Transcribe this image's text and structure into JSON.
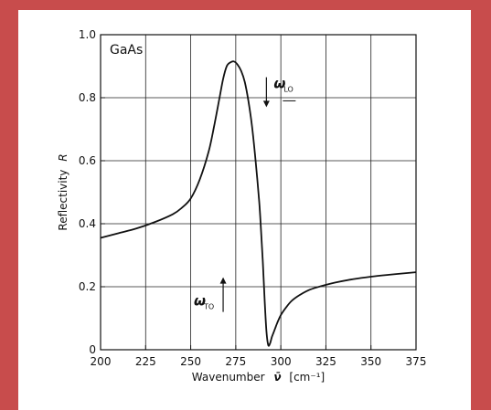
{
  "chart_data": {
    "type": "line",
    "title": "",
    "annotation_label": "GaAs",
    "xlabel": "Wavenumber",
    "xlabel_symbol": "ν̄",
    "xlabel_unit": "[cm⁻¹]",
    "ylabel": "Reflectivity",
    "ylabel_symbol": "R",
    "xlim": [
      200,
      375
    ],
    "ylim": [
      0,
      1.0
    ],
    "x_ticks": [
      200,
      225,
      250,
      275,
      300,
      325,
      350,
      375
    ],
    "x_tick_labels": [
      "200",
      "225",
      "250",
      "275",
      "300",
      "325",
      "350",
      "375"
    ],
    "y_ticks": [
      0,
      0.2,
      0.4,
      0.6,
      0.8,
      1.0
    ],
    "y_tick_labels": [
      "0",
      "0.2",
      "0.4",
      "0.6",
      "0.8",
      "1.0"
    ],
    "grid": true,
    "markers": [
      {
        "name": "ω",
        "subscript": "TO",
        "x": 268,
        "direction": "up"
      },
      {
        "name": "ω",
        "subscript": "LO",
        "x": 292,
        "direction": "down"
      }
    ],
    "series": [
      {
        "x": [
          200,
          210,
          220,
          230,
          240,
          245,
          250,
          255,
          260,
          263,
          266,
          268,
          270,
          272,
          274,
          276,
          278,
          280,
          282,
          284,
          286,
          288,
          289,
          290,
          291,
          292,
          293,
          294,
          295,
          296,
          297,
          298,
          300,
          303,
          306,
          310,
          315,
          320,
          330,
          340,
          350,
          360,
          375
        ],
        "y": [
          0.355,
          0.37,
          0.385,
          0.405,
          0.43,
          0.45,
          0.48,
          0.54,
          0.63,
          0.71,
          0.8,
          0.86,
          0.9,
          0.912,
          0.915,
          0.905,
          0.885,
          0.85,
          0.79,
          0.71,
          0.6,
          0.47,
          0.38,
          0.28,
          0.16,
          0.06,
          0.015,
          0.02,
          0.04,
          0.055,
          0.07,
          0.085,
          0.11,
          0.135,
          0.155,
          0.172,
          0.188,
          0.198,
          0.213,
          0.224,
          0.232,
          0.238,
          0.246
        ]
      }
    ]
  }
}
